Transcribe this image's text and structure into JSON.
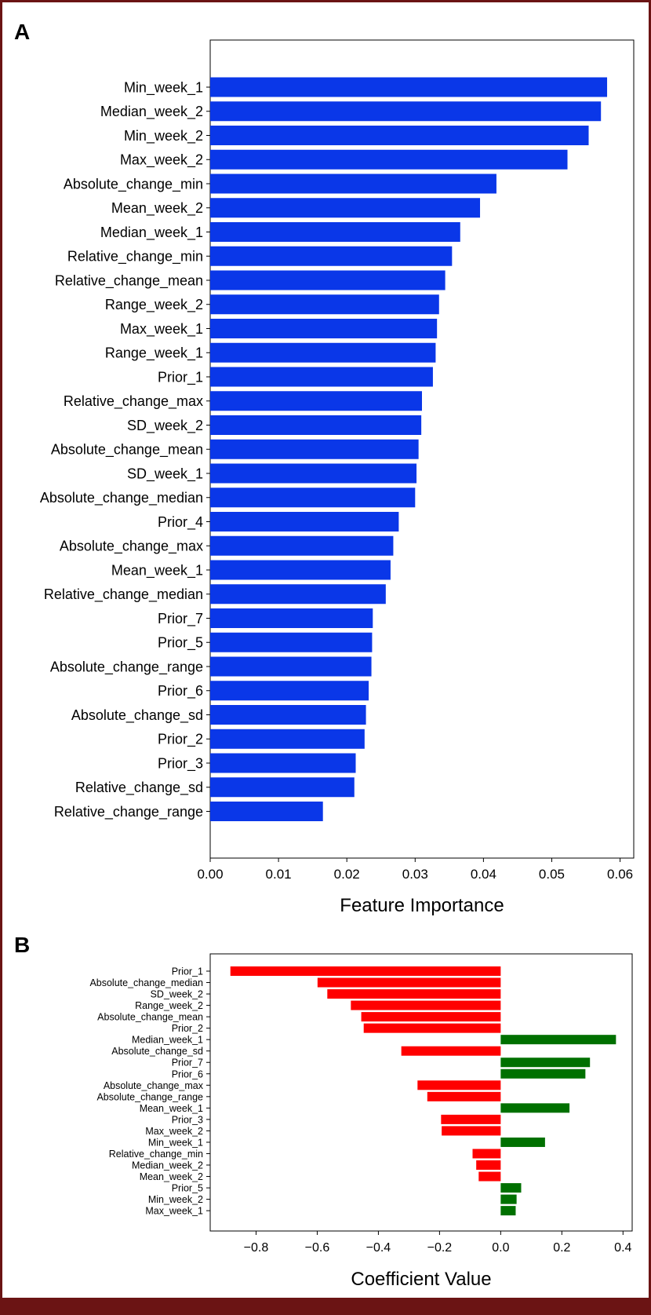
{
  "colors": {
    "importance_bar": "#0a37e8",
    "negative_coef": "#ff0000",
    "positive_coef": "#007000",
    "frame": "#6b1414"
  },
  "chart_data": [
    {
      "type": "bar",
      "orientation": "horizontal",
      "panel_label": "A",
      "title": "",
      "xlabel": "Feature Importance",
      "ylabel": "",
      "xlim": [
        0,
        0.062
      ],
      "xticks": [
        0.0,
        0.01,
        0.02,
        0.03,
        0.04,
        0.05,
        0.06
      ],
      "xtick_labels": [
        "0.00",
        "0.01",
        "0.02",
        "0.03",
        "0.04",
        "0.05",
        "0.06"
      ],
      "grid": false,
      "categories": [
        "Min_week_1",
        "Median_week_2",
        "Min_week_2",
        "Max_week_2",
        "Absolute_change_min",
        "Mean_week_2",
        "Median_week_1",
        "Relative_change_min",
        "Relative_change_mean",
        "Range_week_2",
        "Max_week_1",
        "Range_week_1",
        "Prior_1",
        "Relative_change_max",
        "SD_week_2",
        "Absolute_change_mean",
        "SD_week_1",
        "Absolute_change_median",
        "Prior_4",
        "Absolute_change_max",
        "Mean_week_1",
        "Relative_change_median",
        "Prior_7",
        "Prior_5",
        "Absolute_change_range",
        "Prior_6",
        "Absolute_change_sd",
        "Prior_2",
        "Prior_3",
        "Relative_change_sd",
        "Relative_change_range"
      ],
      "values": [
        0.0581,
        0.0572,
        0.0554,
        0.0523,
        0.0419,
        0.0395,
        0.0366,
        0.0354,
        0.0344,
        0.0335,
        0.0332,
        0.033,
        0.0326,
        0.031,
        0.0309,
        0.0305,
        0.0302,
        0.03,
        0.0276,
        0.0268,
        0.0264,
        0.0257,
        0.0238,
        0.0237,
        0.0236,
        0.0232,
        0.0228,
        0.0226,
        0.0213,
        0.0211,
        0.0165
      ]
    },
    {
      "type": "bar",
      "orientation": "horizontal",
      "panel_label": "B",
      "title": "",
      "xlabel": "Coefficient Value",
      "ylabel": "",
      "xlim": [
        -0.95,
        0.43
      ],
      "xticks": [
        -0.8,
        -0.6,
        -0.4,
        -0.2,
        0.0,
        0.2,
        0.4
      ],
      "xtick_labels": [
        "−0.8",
        "−0.6",
        "−0.4",
        "−0.2",
        "0.0",
        "0.2",
        "0.4"
      ],
      "grid": false,
      "categories": [
        "Prior_1",
        "Absolute_change_median",
        "SD_week_2",
        "Range_week_2",
        "Absolute_change_mean",
        "Prior_2",
        "Median_week_1",
        "Absolute_change_sd",
        "Prior_7",
        "Prior_6",
        "Absolute_change_max",
        "Absolute_change_range",
        "Mean_week_1",
        "Prior_3",
        "Max_week_2",
        "Min_week_1",
        "Relative_change_min",
        "Median_week_2",
        "Mean_week_2",
        "Prior_5",
        "Min_week_2",
        "Max_week_1"
      ],
      "values": [
        -0.884,
        -0.599,
        -0.567,
        -0.49,
        -0.456,
        -0.448,
        0.377,
        -0.325,
        0.292,
        0.277,
        -0.272,
        -0.24,
        0.225,
        -0.195,
        -0.193,
        0.145,
        -0.092,
        -0.08,
        -0.072,
        0.067,
        0.052,
        0.049
      ]
    }
  ]
}
